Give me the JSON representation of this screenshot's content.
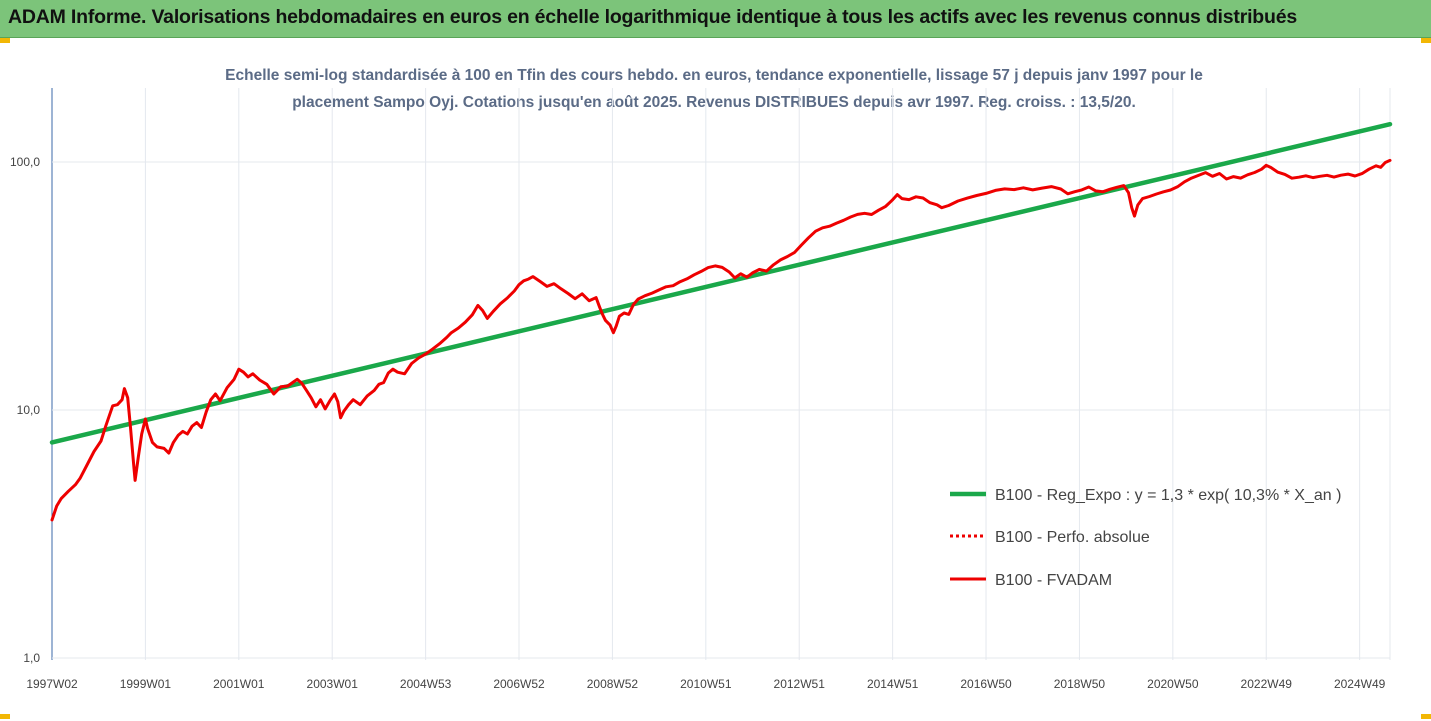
{
  "banner": {
    "title": "ADAM Informe. Valorisations hebdomadaires en euros en échelle logarithmique identique à tous les actifs avec les revenus connus distribués"
  },
  "colors": {
    "banner_bg": "#7cc47a",
    "accent_corner": "#f2b705",
    "regression_line": "#1aa84a",
    "fvadam_line": "#ee0000",
    "subtitle_text": "#5b6b86"
  },
  "chart_data": {
    "type": "line",
    "subtitle_lines": [
      "Echelle semi-log standardisée à 100 en Tfin des cours hebdo. en euros, tendance exponentielle, lissage 57 j depuis janv 1997 pour le",
      "placement Sampo Oyj. Cotations jusqu'en août 2025. Revenus DISTRIBUES depuis avr 1997. Reg. croiss. : 13,5/20."
    ],
    "y_scale": "log",
    "ylim": [
      1,
      200
    ],
    "y_ticks": [
      {
        "value": 1,
        "label": "1,0"
      },
      {
        "value": 10,
        "label": "10,0"
      },
      {
        "value": 100,
        "label": "100,0"
      }
    ],
    "x_range": [
      1997.0,
      2025.65
    ],
    "x_ticks": [
      {
        "t": 1997.0,
        "label": "1997W02"
      },
      {
        "t": 1999.0,
        "label": "1999W01"
      },
      {
        "t": 2001.0,
        "label": "2001W01"
      },
      {
        "t": 2003.0,
        "label": "2003W01"
      },
      {
        "t": 2005.0,
        "label": "2004W53"
      },
      {
        "t": 2007.0,
        "label": "2006W52"
      },
      {
        "t": 2009.0,
        "label": "2008W52"
      },
      {
        "t": 2011.0,
        "label": "2010W51"
      },
      {
        "t": 2013.0,
        "label": "2012W51"
      },
      {
        "t": 2015.0,
        "label": "2014W51"
      },
      {
        "t": 2017.0,
        "label": "2016W50"
      },
      {
        "t": 2019.0,
        "label": "2018W50"
      },
      {
        "t": 2021.0,
        "label": "2020W50"
      },
      {
        "t": 2023.0,
        "label": "2022W49"
      },
      {
        "t": 2025.0,
        "label": "2024W49"
      }
    ],
    "grid": "vertical",
    "legend_position": "bottom-right",
    "series": [
      {
        "name": "B100 - Reg_Expo : y = 1,3 * exp( 10,3% * X_an )",
        "color": "#1aa84a",
        "style": "solid",
        "points": [
          [
            1997.0,
            7.4
          ],
          [
            2025.65,
            142
          ]
        ]
      },
      {
        "name": "B100 - Perfo. absolue",
        "color": "#ee0000",
        "style": "dotted",
        "points": []
      },
      {
        "name": "B100 - FVADAM",
        "color": "#ee0000",
        "style": "solid",
        "points": [
          [
            1997.0,
            3.6
          ],
          [
            1997.1,
            4.1
          ],
          [
            1997.2,
            4.4
          ],
          [
            1997.35,
            4.7
          ],
          [
            1997.5,
            5.0
          ],
          [
            1997.6,
            5.3
          ],
          [
            1997.75,
            6.0
          ],
          [
            1997.9,
            6.8
          ],
          [
            1998.05,
            7.5
          ],
          [
            1998.15,
            8.6
          ],
          [
            1998.3,
            10.4
          ],
          [
            1998.4,
            10.5
          ],
          [
            1998.5,
            11.0
          ],
          [
            1998.55,
            12.2
          ],
          [
            1998.62,
            11.2
          ],
          [
            1998.68,
            8.5
          ],
          [
            1998.75,
            6.0
          ],
          [
            1998.78,
            5.2
          ],
          [
            1998.85,
            6.5
          ],
          [
            1998.92,
            8.0
          ],
          [
            1999.0,
            9.2
          ],
          [
            1999.05,
            8.4
          ],
          [
            1999.15,
            7.4
          ],
          [
            1999.25,
            7.1
          ],
          [
            1999.4,
            7.0
          ],
          [
            1999.5,
            6.7
          ],
          [
            1999.6,
            7.4
          ],
          [
            1999.7,
            7.9
          ],
          [
            1999.8,
            8.2
          ],
          [
            1999.9,
            8.0
          ],
          [
            2000.0,
            8.6
          ],
          [
            2000.1,
            8.9
          ],
          [
            2000.2,
            8.5
          ],
          [
            2000.3,
            9.8
          ],
          [
            2000.4,
            11.0
          ],
          [
            2000.5,
            11.6
          ],
          [
            2000.6,
            10.9
          ],
          [
            2000.75,
            12.3
          ],
          [
            2000.9,
            13.3
          ],
          [
            2001.0,
            14.6
          ],
          [
            2001.1,
            14.2
          ],
          [
            2001.2,
            13.6
          ],
          [
            2001.3,
            14.0
          ],
          [
            2001.45,
            13.2
          ],
          [
            2001.6,
            12.7
          ],
          [
            2001.75,
            11.6
          ],
          [
            2001.9,
            12.4
          ],
          [
            2002.05,
            12.5
          ],
          [
            2002.15,
            12.9
          ],
          [
            2002.25,
            13.3
          ],
          [
            2002.35,
            12.8
          ],
          [
            2002.45,
            12.0
          ],
          [
            2002.55,
            11.2
          ],
          [
            2002.65,
            10.3
          ],
          [
            2002.75,
            11.0
          ],
          [
            2002.85,
            10.1
          ],
          [
            2002.95,
            10.9
          ],
          [
            2003.05,
            11.6
          ],
          [
            2003.12,
            10.8
          ],
          [
            2003.18,
            9.3
          ],
          [
            2003.25,
            9.9
          ],
          [
            2003.35,
            10.5
          ],
          [
            2003.45,
            11.0
          ],
          [
            2003.6,
            10.5
          ],
          [
            2003.75,
            11.4
          ],
          [
            2003.9,
            12.0
          ],
          [
            2004.0,
            12.7
          ],
          [
            2004.1,
            12.9
          ],
          [
            2004.2,
            14.1
          ],
          [
            2004.3,
            14.6
          ],
          [
            2004.4,
            14.2
          ],
          [
            2004.55,
            14.0
          ],
          [
            2004.7,
            15.4
          ],
          [
            2004.85,
            16.2
          ],
          [
            2005.0,
            16.8
          ],
          [
            2005.15,
            17.6
          ],
          [
            2005.3,
            18.5
          ],
          [
            2005.45,
            19.6
          ],
          [
            2005.55,
            20.5
          ],
          [
            2005.7,
            21.4
          ],
          [
            2005.85,
            22.6
          ],
          [
            2006.0,
            24.2
          ],
          [
            2006.12,
            26.4
          ],
          [
            2006.22,
            25.2
          ],
          [
            2006.32,
            23.4
          ],
          [
            2006.45,
            25.0
          ],
          [
            2006.6,
            26.8
          ],
          [
            2006.75,
            28.3
          ],
          [
            2006.9,
            30.2
          ],
          [
            2007.0,
            32.0
          ],
          [
            2007.1,
            33.2
          ],
          [
            2007.2,
            33.7
          ],
          [
            2007.3,
            34.5
          ],
          [
            2007.45,
            33.0
          ],
          [
            2007.6,
            31.5
          ],
          [
            2007.75,
            32.3
          ],
          [
            2007.9,
            30.8
          ],
          [
            2008.05,
            29.5
          ],
          [
            2008.2,
            28.1
          ],
          [
            2008.35,
            29.4
          ],
          [
            2008.5,
            27.6
          ],
          [
            2008.65,
            28.4
          ],
          [
            2008.72,
            26.2
          ],
          [
            2008.78,
            24.5
          ],
          [
            2008.85,
            23.0
          ],
          [
            2008.95,
            22.0
          ],
          [
            2009.02,
            20.5
          ],
          [
            2009.08,
            21.8
          ],
          [
            2009.15,
            23.9
          ],
          [
            2009.25,
            24.6
          ],
          [
            2009.35,
            24.3
          ],
          [
            2009.45,
            26.6
          ],
          [
            2009.55,
            28.0
          ],
          [
            2009.7,
            28.9
          ],
          [
            2009.85,
            29.6
          ],
          [
            2010.0,
            30.5
          ],
          [
            2010.15,
            31.4
          ],
          [
            2010.3,
            31.7
          ],
          [
            2010.45,
            32.9
          ],
          [
            2010.6,
            33.8
          ],
          [
            2010.75,
            35.1
          ],
          [
            2010.9,
            36.2
          ],
          [
            2011.05,
            37.5
          ],
          [
            2011.2,
            38.1
          ],
          [
            2011.35,
            37.6
          ],
          [
            2011.5,
            36.0
          ],
          [
            2011.62,
            34.1
          ],
          [
            2011.75,
            35.4
          ],
          [
            2011.88,
            34.3
          ],
          [
            2012.0,
            35.7
          ],
          [
            2012.15,
            36.9
          ],
          [
            2012.3,
            36.3
          ],
          [
            2012.45,
            38.5
          ],
          [
            2012.6,
            40.3
          ],
          [
            2012.75,
            41.6
          ],
          [
            2012.9,
            43.2
          ],
          [
            2013.05,
            46.3
          ],
          [
            2013.2,
            49.5
          ],
          [
            2013.35,
            52.6
          ],
          [
            2013.5,
            54.3
          ],
          [
            2013.65,
            55.1
          ],
          [
            2013.8,
            56.7
          ],
          [
            2013.95,
            58.2
          ],
          [
            2014.1,
            60.0
          ],
          [
            2014.25,
            61.5
          ],
          [
            2014.4,
            62.1
          ],
          [
            2014.55,
            61.4
          ],
          [
            2014.7,
            63.9
          ],
          [
            2014.85,
            66.2
          ],
          [
            2015.0,
            70.4
          ],
          [
            2015.1,
            73.9
          ],
          [
            2015.2,
            71.2
          ],
          [
            2015.35,
            70.5
          ],
          [
            2015.5,
            72.4
          ],
          [
            2015.65,
            71.6
          ],
          [
            2015.8,
            68.5
          ],
          [
            2015.95,
            67.2
          ],
          [
            2016.05,
            65.4
          ],
          [
            2016.2,
            66.8
          ],
          [
            2016.4,
            69.6
          ],
          [
            2016.6,
            71.5
          ],
          [
            2016.8,
            73.3
          ],
          [
            2017.0,
            74.7
          ],
          [
            2017.2,
            76.8
          ],
          [
            2017.4,
            77.9
          ],
          [
            2017.6,
            77.4
          ],
          [
            2017.8,
            78.7
          ],
          [
            2018.0,
            77.2
          ],
          [
            2018.2,
            78.5
          ],
          [
            2018.4,
            79.6
          ],
          [
            2018.6,
            77.8
          ],
          [
            2018.75,
            74.4
          ],
          [
            2018.9,
            75.9
          ],
          [
            2019.05,
            77.2
          ],
          [
            2019.2,
            79.3
          ],
          [
            2019.35,
            76.5
          ],
          [
            2019.5,
            75.8
          ],
          [
            2019.65,
            77.6
          ],
          [
            2019.8,
            79.1
          ],
          [
            2019.95,
            80.3
          ],
          [
            2020.05,
            75.2
          ],
          [
            2020.12,
            65.5
          ],
          [
            2020.18,
            60.5
          ],
          [
            2020.25,
            67.1
          ],
          [
            2020.35,
            71.2
          ],
          [
            2020.5,
            72.6
          ],
          [
            2020.65,
            74.3
          ],
          [
            2020.8,
            75.8
          ],
          [
            2020.95,
            77.1
          ],
          [
            2021.1,
            79.4
          ],
          [
            2021.25,
            83.2
          ],
          [
            2021.4,
            86.1
          ],
          [
            2021.55,
            88.3
          ],
          [
            2021.7,
            90.6
          ],
          [
            2021.85,
            87.6
          ],
          [
            2022.0,
            89.9
          ],
          [
            2022.15,
            85.4
          ],
          [
            2022.3,
            87.3
          ],
          [
            2022.45,
            86.1
          ],
          [
            2022.6,
            88.8
          ],
          [
            2022.75,
            90.7
          ],
          [
            2022.9,
            93.5
          ],
          [
            2023.0,
            97.0
          ],
          [
            2023.1,
            95.0
          ],
          [
            2023.25,
            91.0
          ],
          [
            2023.4,
            89.1
          ],
          [
            2023.55,
            86.0
          ],
          [
            2023.7,
            86.8
          ],
          [
            2023.85,
            88.0
          ],
          [
            2024.0,
            86.5
          ],
          [
            2024.15,
            87.6
          ],
          [
            2024.3,
            88.4
          ],
          [
            2024.45,
            86.9
          ],
          [
            2024.6,
            88.5
          ],
          [
            2024.75,
            89.4
          ],
          [
            2024.9,
            87.8
          ],
          [
            2025.05,
            89.8
          ],
          [
            2025.2,
            93.5
          ],
          [
            2025.35,
            96.5
          ],
          [
            2025.45,
            95.2
          ],
          [
            2025.55,
            99.5
          ],
          [
            2025.65,
            101.5
          ]
        ]
      }
    ]
  }
}
